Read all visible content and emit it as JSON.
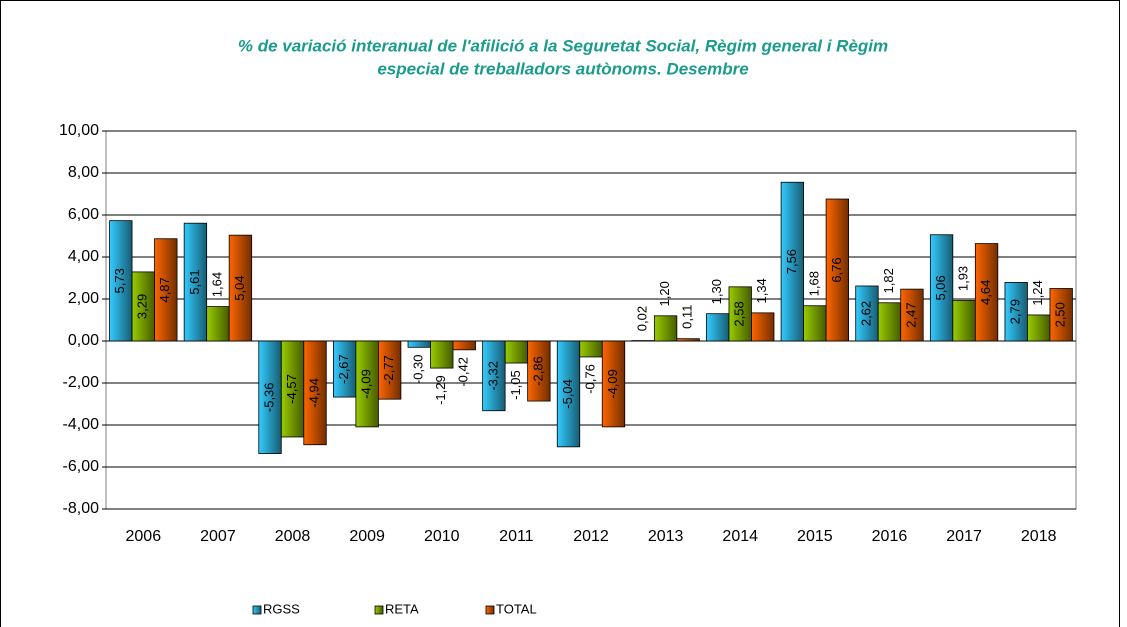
{
  "chart_data": {
    "type": "bar",
    "title": [
      "% de variació interanual de l'afilició a la Seguretat Social, Règim general i Règim",
      "especial de treballadors autònoms. Desembre"
    ],
    "categories": [
      "2006",
      "2007",
      "2008",
      "2009",
      "2010",
      "2011",
      "2012",
      "2013",
      "2014",
      "2015",
      "2016",
      "2017",
      "2018"
    ],
    "series": [
      {
        "name": "RGSS",
        "color": "#33ccff",
        "values": [
          5.73,
          5.61,
          -5.36,
          -2.67,
          -0.3,
          -3.32,
          -5.04,
          0.02,
          1.3,
          7.56,
          2.62,
          5.06,
          2.79
        ],
        "value_labels": [
          "5,73",
          "5,61",
          "-5,36",
          "-2,67",
          "-0,30",
          "-3,32",
          "-5,04",
          "0,02",
          "1,30",
          "7,56",
          "2,62",
          "5,06",
          "2,79"
        ]
      },
      {
        "name": "RETA",
        "color": "#99cc00",
        "values": [
          3.29,
          1.64,
          -4.57,
          -4.09,
          -1.29,
          -1.05,
          -0.76,
          1.2,
          2.58,
          1.68,
          1.82,
          1.93,
          1.24
        ],
        "value_labels": [
          "3,29",
          "1,64",
          "-4,57",
          "-4,09",
          "-1,29",
          "-1,05",
          "-0,76",
          "1,20",
          "2,58",
          "1,68",
          "1,82",
          "1,93",
          "1,24"
        ]
      },
      {
        "name": "TOTAL",
        "color": "#ff6600",
        "values": [
          4.87,
          5.04,
          -4.94,
          -2.77,
          -0.42,
          -2.86,
          -4.09,
          0.11,
          1.34,
          6.76,
          2.47,
          4.64,
          2.5
        ],
        "value_labels": [
          "4,87",
          "5,04",
          "-4,94",
          "-2,77",
          "-0,42",
          "-2,86",
          "-4,09",
          "0,11",
          "1,34",
          "6,76",
          "2,47",
          "4,64",
          "2,50"
        ]
      }
    ],
    "ylim": [
      -8,
      10
    ],
    "yticks": [
      {
        "value": -8,
        "label": "-8,00"
      },
      {
        "value": -6,
        "label": "-6,00"
      },
      {
        "value": -4,
        "label": "-4,00"
      },
      {
        "value": -2,
        "label": "-2,00"
      },
      {
        "value": 0,
        "label": "0,00"
      },
      {
        "value": 2,
        "label": "2,00"
      },
      {
        "value": 4,
        "label": "4,00"
      },
      {
        "value": 6,
        "label": "6,00"
      },
      {
        "value": 8,
        "label": "8,00"
      },
      {
        "value": 10,
        "label": "10,00"
      }
    ],
    "grid": true,
    "legend": "bottom"
  }
}
